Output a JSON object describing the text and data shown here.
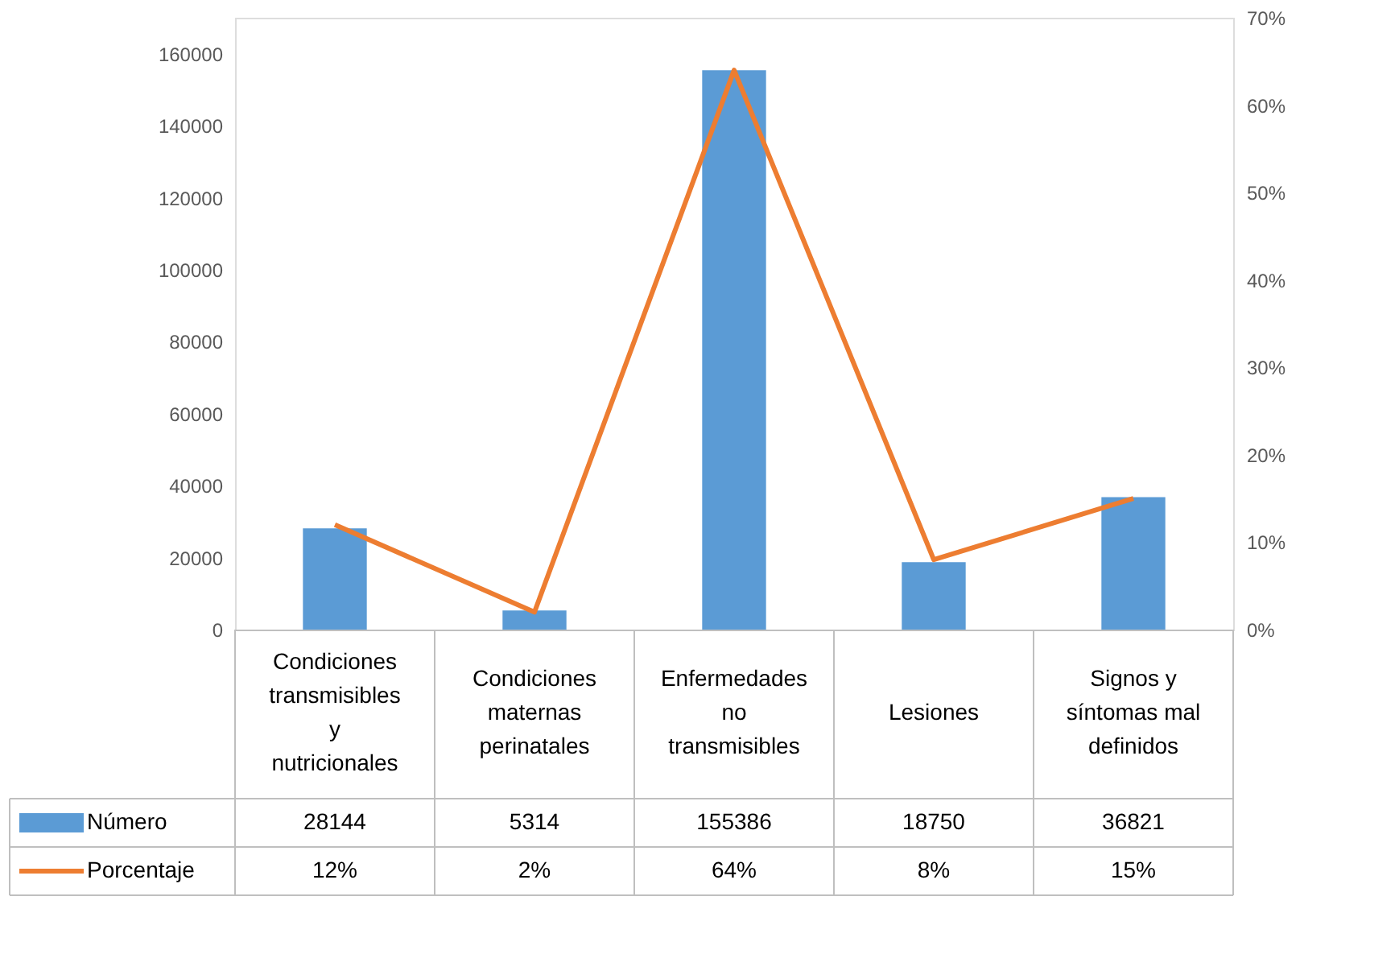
{
  "chart_data": {
    "type": "bar",
    "categories": [
      "Condiciones transmisibles y nutricionales",
      "Condiciones maternas perinatales",
      "Enfermedades no transmisibles",
      "Lesiones",
      "Signos y síntomas mal definidos"
    ],
    "series": [
      {
        "name": "Número",
        "color": "#5b9bd5",
        "values": [
          28144,
          5314,
          155386,
          18750,
          36821
        ],
        "value_labels": [
          "28144",
          "5314",
          "155386",
          "18750",
          "36821"
        ]
      },
      {
        "name": "Porcentaje",
        "color": "#ed7d31",
        "type": "line",
        "axis": "y2",
        "values": [
          12,
          2,
          64,
          8,
          15
        ],
        "value_labels": [
          "12%",
          "2%",
          "64%",
          "8%",
          "15%"
        ]
      }
    ],
    "ylim": [
      0,
      170000
    ],
    "yticks": [
      0,
      20000,
      40000,
      60000,
      80000,
      100000,
      120000,
      140000,
      160000
    ],
    "y2lim": [
      0,
      70
    ],
    "y2ticks": [
      {
        "value": 0,
        "label": "0%"
      },
      {
        "value": 10,
        "label": "10%"
      },
      {
        "value": 20,
        "label": "20%"
      },
      {
        "value": 30,
        "label": "30%"
      },
      {
        "value": 40,
        "label": "40%"
      },
      {
        "value": 50,
        "label": "50%"
      },
      {
        "value": 60,
        "label": "60%"
      },
      {
        "value": 70,
        "label": "70%"
      }
    ],
    "legend": "bottom"
  }
}
